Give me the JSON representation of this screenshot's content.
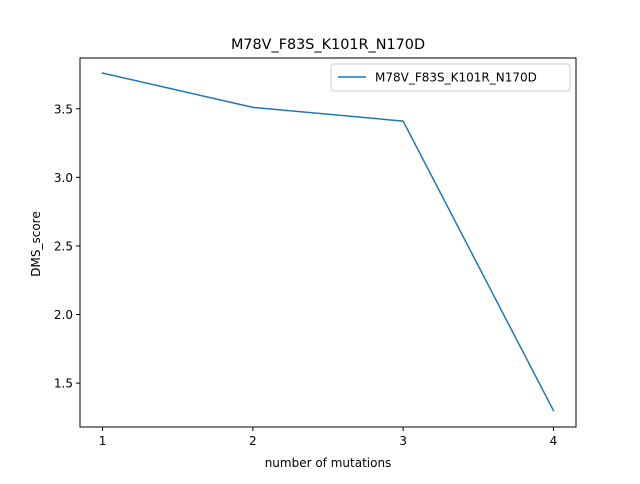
{
  "colors": {
    "series": "#1f77b4",
    "axes": "#000000",
    "background": "#ffffff"
  },
  "chart_data": {
    "type": "line",
    "title": "M78V_F83S_K101R_N170D",
    "xlabel": "number of mutations",
    "ylabel": "DMS_score",
    "x": [
      1,
      2,
      3,
      4
    ],
    "xticks": [
      1,
      2,
      3,
      4
    ],
    "xtick_labels": [
      "1",
      "2",
      "3",
      "4"
    ],
    "yticks": [
      1.5,
      2.0,
      2.5,
      3.0,
      3.5
    ],
    "ytick_labels": [
      "1.5",
      "2.0",
      "2.5",
      "3.0",
      "3.5"
    ],
    "xlim": [
      0.85,
      4.15
    ],
    "ylim": [
      1.18,
      3.87
    ],
    "grid": false,
    "legend_position": "top-right",
    "series": [
      {
        "name": "M78V_F83S_K101R_N170D",
        "values": [
          3.76,
          3.51,
          3.41,
          1.3
        ]
      }
    ]
  }
}
